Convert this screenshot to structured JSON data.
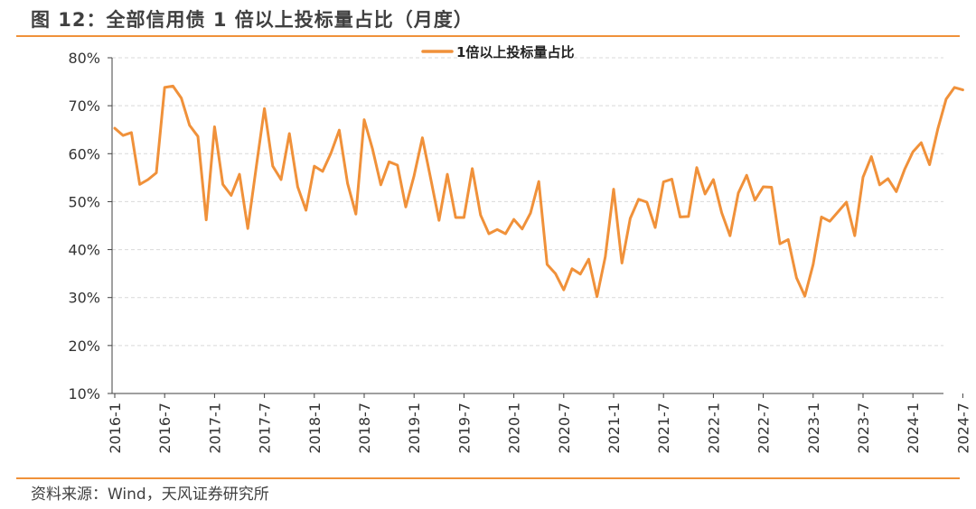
{
  "figure": {
    "title": "图 12：全部信用债 1 倍以上投标量占比（月度）",
    "source": "资料来源：Wind，天风证券研究所"
  },
  "colors": {
    "line": "#f0913a",
    "rule": "#f0913a",
    "grid": "#d9d9d9",
    "axis": "#404040"
  },
  "chart_data": {
    "type": "line",
    "title": "",
    "xlabel": "",
    "ylabel": "",
    "ylim": [
      10,
      80
    ],
    "y_ticks": [
      "10%",
      "20%",
      "30%",
      "40%",
      "50%",
      "60%",
      "70%",
      "80%"
    ],
    "y_unit": "%",
    "grid": "horizontal, dashed",
    "legend": "top-center",
    "x_tick_labels": [
      "2016-1",
      "2016-7",
      "2017-1",
      "2017-7",
      "2018-1",
      "2018-7",
      "2019-1",
      "2019-7",
      "2020-1",
      "2020-7",
      "2021-1",
      "2021-7",
      "2022-1",
      "2022-7",
      "2023-1",
      "2023-7",
      "2024-1",
      "2024-7"
    ],
    "series": [
      {
        "name": "1倍以上投标量占比",
        "values": [
          65.3,
          63.8,
          64.4,
          53.6,
          54.6,
          56.0,
          73.8,
          74.1,
          71.6,
          65.9,
          63.6,
          46.2,
          65.6,
          53.6,
          51.3,
          55.7,
          44.4,
          57.0,
          69.4,
          57.4,
          54.6,
          64.2,
          53.1,
          48.2,
          57.4,
          56.3,
          60.1,
          64.9,
          53.8,
          47.4,
          67.1,
          61.0,
          53.5,
          58.3,
          57.6,
          48.9,
          55.4,
          63.3,
          54.8,
          46.1,
          55.7,
          46.7,
          46.7,
          56.9,
          47.2,
          43.3,
          44.2,
          43.3,
          46.3,
          44.3,
          47.6,
          54.2,
          36.9,
          35.0,
          31.6,
          36.0,
          34.9,
          38.0,
          30.2,
          38.5,
          52.6,
          37.2,
          46.5,
          50.5,
          49.9,
          44.6,
          54.1,
          54.7,
          46.8,
          46.9,
          57.1,
          51.6,
          54.6,
          47.7,
          42.9,
          51.8,
          55.5,
          50.3,
          53.1,
          53.0,
          41.2,
          42.1,
          34.1,
          30.3,
          36.9,
          46.8,
          45.9,
          47.9,
          49.9,
          42.9,
          55.1,
          59.4,
          53.5,
          54.8,
          52.1,
          56.7,
          60.4,
          62.3,
          57.7,
          65.2,
          71.4,
          73.8,
          73.3
        ]
      }
    ]
  }
}
